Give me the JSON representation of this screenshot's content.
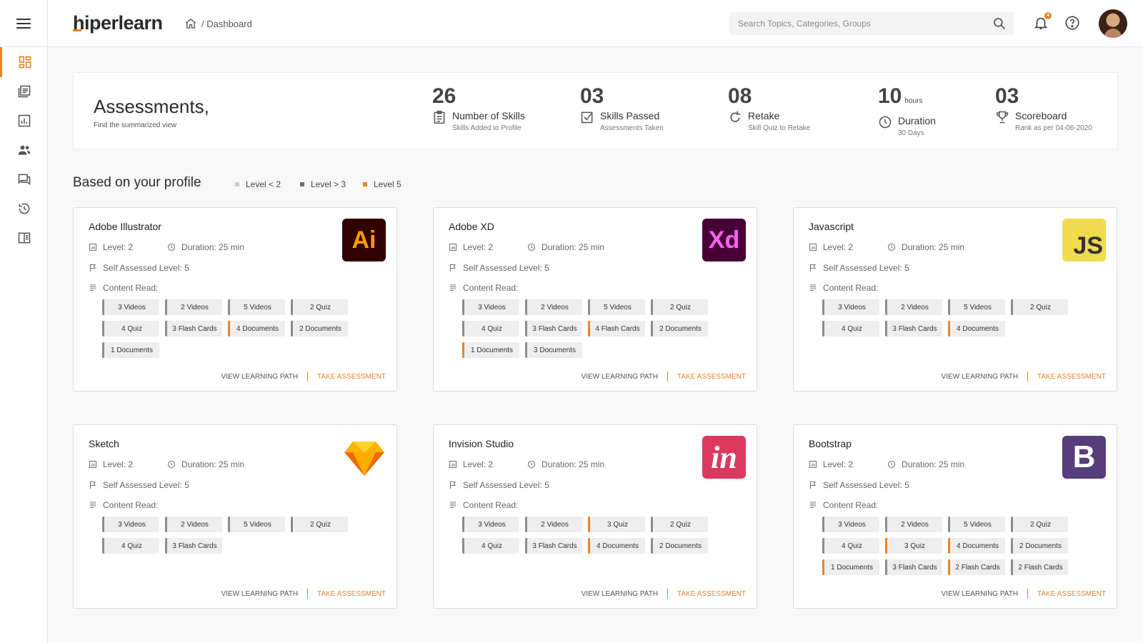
{
  "header": {
    "logo": "hiperlearn",
    "logo_hi": "hi",
    "logo_rest": "perlearn",
    "breadcrumb": "/ Dashboard",
    "search_placeholder": "Search Topics, Categories, Groups",
    "notification_count": "4"
  },
  "summary": {
    "title": "Assessments,",
    "subtitle": "Find the summarized view",
    "stats": [
      {
        "value": "26",
        "unit": "",
        "label": "Number of Skills",
        "sub": "Skills Added to Profile",
        "icon": "clipboard-icon"
      },
      {
        "value": "03",
        "unit": "",
        "label": "Skills Passed",
        "sub": "Assessments Taken",
        "icon": "checkbox-icon"
      },
      {
        "value": "08",
        "unit": "",
        "label": "Retake",
        "sub": "Skill Quiz to Retake",
        "icon": "refresh-icon"
      },
      {
        "value": "10",
        "unit": "hours",
        "label": "Duration",
        "sub": "30 Days",
        "icon": "clock-icon"
      },
      {
        "value": "03",
        "unit": "",
        "label": "Scoreboard",
        "sub": "Rank as per 04-06-2020",
        "icon": "trophy-icon"
      }
    ]
  },
  "section": {
    "title": "Based on your profile",
    "legend": [
      {
        "label": "Level < 2",
        "color": "#c9c9cc"
      },
      {
        "label": "Level > 3",
        "color": "#6f6f73"
      },
      {
        "label": "Level 5",
        "color": "#e8852a"
      }
    ]
  },
  "cards": [
    {
      "name": "Adobe Illustrator",
      "logo_text": "Ai",
      "logo_bg": "#310000",
      "logo_fg": "#ff9a00",
      "level": "Level: 2",
      "duration": "Duration: 25 min",
      "self": "Self Assessed Level: 5",
      "content": "Content Read:",
      "chips": [
        [
          "3 Videos",
          0
        ],
        [
          "2 Videos",
          0
        ],
        [
          "5 Videos",
          0
        ],
        [
          "2 Quiz",
          0
        ],
        [
          "4 Quiz",
          0
        ],
        [
          "3 Flash Cards",
          0
        ],
        [
          "4 Documents",
          1
        ],
        [
          "2 Documents",
          0
        ],
        [
          "1 Documents",
          0
        ]
      ],
      "view": "VIEW LEARNING PATH",
      "take": "TAKE ASSESSMENT"
    },
    {
      "name": "Adobe XD",
      "logo_text": "Xd",
      "logo_bg": "#470137",
      "logo_fg": "#ff61f6",
      "level": "Level: 2",
      "duration": "Duration: 25 min",
      "self": "Self Assessed Level: 5",
      "content": "Content Read:",
      "chips": [
        [
          "3 Videos",
          0
        ],
        [
          "2 Videos",
          0
        ],
        [
          "5 Videos",
          0
        ],
        [
          "2 Quiz",
          0
        ],
        [
          "4 Quiz",
          0
        ],
        [
          "3 Flash Cards",
          0
        ],
        [
          "4 Flash Cards",
          1
        ],
        [
          "2 Documents",
          0
        ],
        [
          "1 Documents",
          1
        ],
        [
          "3 Documents",
          0
        ]
      ],
      "view": "VIEW LEARNING PATH",
      "take": "TAKE ASSESSMENT"
    },
    {
      "name": "Javascript",
      "logo_text": "JS",
      "logo_bg": "#f0db4f",
      "logo_fg": "#323330",
      "level": "Level: 2",
      "duration": "Duration: 25 min",
      "self": "Self Assessed Level: 5",
      "content": "Content Read:",
      "chips": [
        [
          "3 Videos",
          0
        ],
        [
          "2 Videos",
          0
        ],
        [
          "5 Videos",
          0
        ],
        [
          "2 Quiz",
          0
        ],
        [
          "4 Quiz",
          0
        ],
        [
          "3 Flash Cards",
          0
        ],
        [
          "4 Documents",
          1
        ]
      ],
      "view": "VIEW LEARNING PATH",
      "take": "TAKE ASSESSMENT"
    },
    {
      "name": "Sketch",
      "logo_text": "",
      "logo_bg": "transparent",
      "logo_fg": "#f7b500",
      "level": "Level: 2",
      "duration": "Duration: 25 min",
      "self": "Self Assessed Level: 5",
      "content": "Content Read:",
      "chips": [
        [
          "3 Videos",
          0
        ],
        [
          "2 Videos",
          0
        ],
        [
          "5 Videos",
          0
        ],
        [
          "2 Quiz",
          0
        ],
        [
          "4 Quiz",
          0
        ],
        [
          "3 Flash Cards",
          0
        ]
      ],
      "view": "VIEW LEARNING PATH",
      "take": "TAKE ASSESSMENT"
    },
    {
      "name": "Invision Studio",
      "logo_text": "in",
      "logo_bg": "#dc395f",
      "logo_fg": "#ffffff",
      "level": "Level: 2",
      "duration": "Duration: 25 min",
      "self": "Self Assessed Level: 5",
      "content": "Content Read:",
      "chips": [
        [
          "3 Videos",
          0
        ],
        [
          "2 Videos",
          0
        ],
        [
          "3 Quiz",
          1
        ],
        [
          "2 Quiz",
          0
        ],
        [
          "4 Quiz",
          0
        ],
        [
          "3 Flash Cards",
          0
        ],
        [
          "4 Documents",
          1
        ],
        [
          "2 Documents",
          0
        ]
      ],
      "view": "VIEW LEARNING PATH",
      "take": "TAKE ASSESSMENT"
    },
    {
      "name": "Bootstrap",
      "logo_text": "B",
      "logo_bg": "#563d7c",
      "logo_fg": "#ffffff",
      "level": "Level: 2",
      "duration": "Duration: 25 min",
      "self": "Self Assessed Level: 5",
      "content": "Content Read:",
      "chips": [
        [
          "3 Videos",
          0
        ],
        [
          "2 Videos",
          0
        ],
        [
          "5 Videos",
          0
        ],
        [
          "2 Quiz",
          0
        ],
        [
          "4 Quiz",
          0
        ],
        [
          "3 Quiz",
          1
        ],
        [
          "4 Documents",
          1
        ],
        [
          "2 Documents",
          0
        ],
        [
          "1 Documents",
          1
        ],
        [
          "3 Flash Cards",
          0
        ],
        [
          "2 Flash Cards",
          1
        ],
        [
          "2 Flash Cards",
          0
        ]
      ],
      "view": "VIEW LEARNING PATH",
      "take": "TAKE ASSESSMENT"
    }
  ]
}
